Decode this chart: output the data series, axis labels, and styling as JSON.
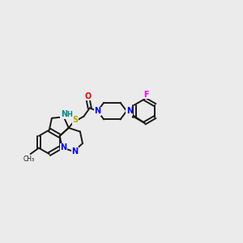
{
  "background_color": "#ebebeb",
  "bond_color": "#1a1a1a",
  "atom_colors": {
    "N": "#0000ee",
    "O": "#ee0000",
    "S": "#aaaa00",
    "F": "#ee00ee",
    "NH": "#008888",
    "C": "#1a1a1a"
  },
  "figsize": [
    3.0,
    3.0
  ],
  "dpi": 100,
  "lw": 1.4,
  "fs": 7.0
}
